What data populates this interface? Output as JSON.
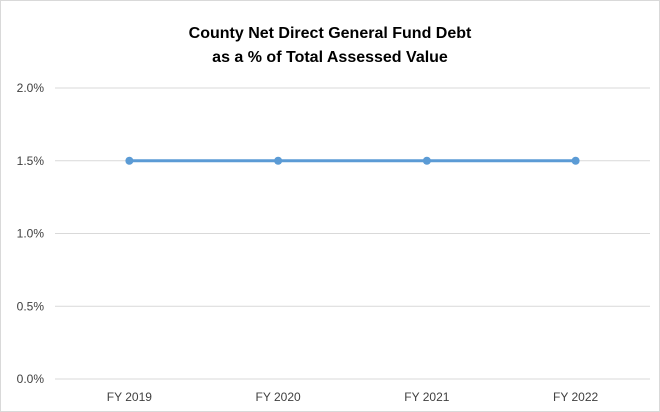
{
  "chart_data": {
    "type": "line",
    "title_lines": [
      "County Net Direct General Fund Debt",
      "as a % of Total Assessed Value"
    ],
    "categories": [
      "FY 2019",
      "FY 2020",
      "FY 2021",
      "FY 2022"
    ],
    "series": [
      {
        "values": [
          1.5,
          1.5,
          1.5,
          1.5
        ]
      }
    ],
    "ylim": [
      0,
      2.0
    ],
    "yticks": [
      0.0,
      0.5,
      1.0,
      1.5,
      2.0
    ],
    "ytick_labels": [
      "0.0%",
      "0.5%",
      "1.0%",
      "1.5%",
      "2.0%"
    ],
    "grid": true,
    "legend": "none",
    "colors": {
      "series": "#5b9bd5",
      "grid": "#d9d9d9",
      "axis_text": "#404040"
    }
  }
}
